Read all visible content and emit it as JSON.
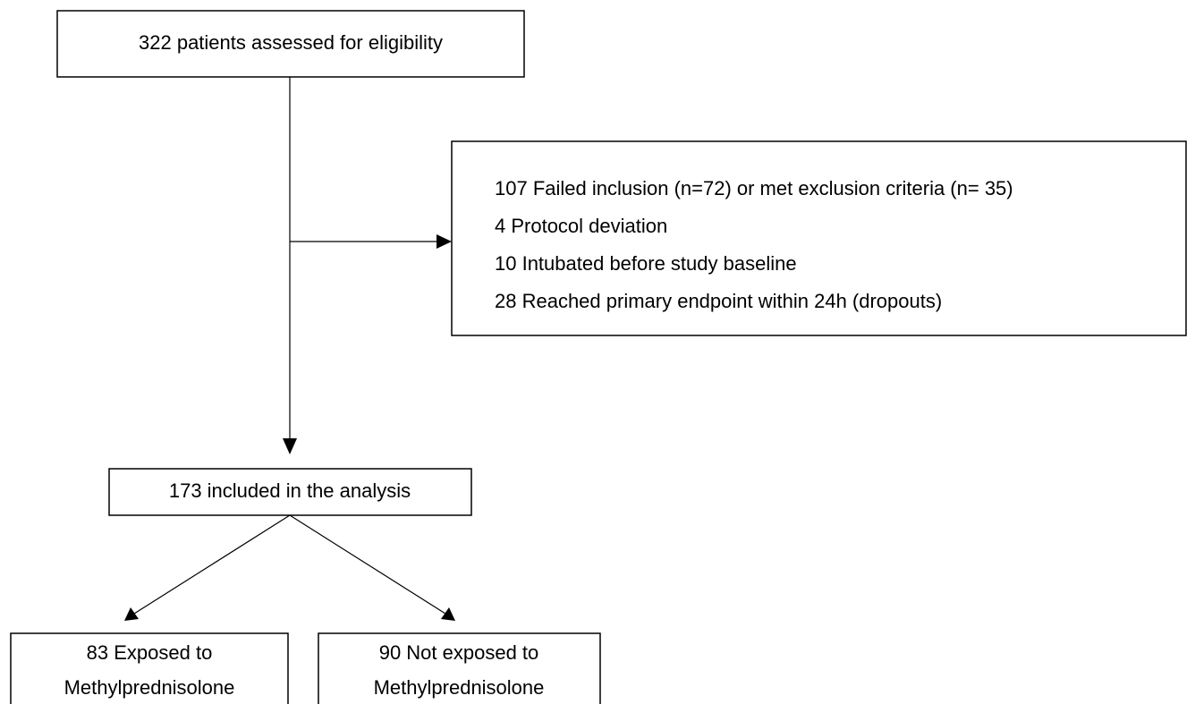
{
  "nodes": [
    {
      "lines": [
        "322 patients assessed for eligibility"
      ]
    },
    {
      "lines": [
        "107 Failed inclusion (n=72) or met exclusion criteria (n= 35)",
        "4 Protocol deviation",
        "10 Intubated before study baseline",
        "28 Reached primary endpoint within 24h (dropouts)"
      ]
    },
    {
      "lines": [
        "173 included in the analysis"
      ]
    },
    {
      "lines": [
        "83 Exposed to",
        "Methylprednisolone"
      ]
    },
    {
      "lines": [
        "90 Not exposed to",
        "Methylprednisolone"
      ]
    }
  ]
}
